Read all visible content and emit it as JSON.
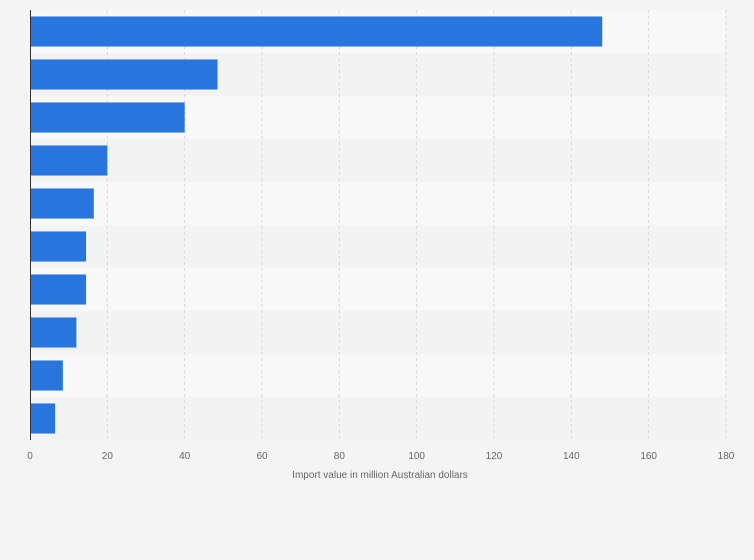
{
  "chart_data": {
    "type": "bar",
    "orientation": "horizontal",
    "categories": [
      "",
      "",
      "",
      "",
      "",
      "",
      "",
      "",
      "",
      ""
    ],
    "values": [
      148,
      48.5,
      40,
      20,
      16.5,
      14.5,
      14.5,
      12,
      8.5,
      6.5
    ],
    "title": "",
    "xlabel": "Import value in million Australian dollars",
    "ylabel": "",
    "xlim": [
      0,
      180
    ],
    "xticks": [
      0,
      20,
      40,
      60,
      80,
      100,
      120,
      140,
      160,
      180
    ],
    "xtick_labels": [
      "0",
      "20",
      "40",
      "60",
      "80",
      "100",
      "120",
      "140",
      "160",
      "180"
    ],
    "grid": "vertical dashed",
    "legend": "none",
    "colors": {
      "bar": "#2876dd",
      "band_light": "#f8f8f8",
      "band_dark": "#f3f3f3",
      "grid": "#d8d8d8",
      "axis": "#333333",
      "text": "#666666"
    }
  }
}
